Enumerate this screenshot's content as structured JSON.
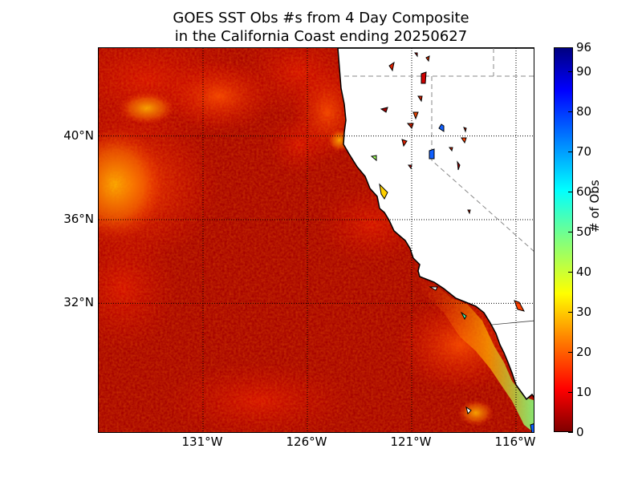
{
  "title": {
    "line1": "GOES SST Obs #s from 4 Day Composite",
    "line2": "in the California Coast ending 20250627"
  },
  "map": {
    "lat_labels": [
      {
        "value": 40,
        "text": "40°N"
      },
      {
        "value": 36,
        "text": "36°N"
      },
      {
        "value": 32,
        "text": "32°N"
      }
    ],
    "lon_labels": [
      {
        "value": -131,
        "text": "131°W"
      },
      {
        "value": -126,
        "text": "126°W"
      },
      {
        "value": -121,
        "text": "121°W"
      },
      {
        "value": -116,
        "text": "116°W"
      }
    ],
    "colors": {
      "ocean_base": "#a50000",
      "land": "#ffffff",
      "coastline": "#000000",
      "gridline": "#000000",
      "border": "#888888"
    }
  },
  "colorbar": {
    "label": "# of Obs",
    "min": 0,
    "max": 96,
    "ticks": [
      {
        "value": 0,
        "text": "0"
      },
      {
        "value": 10,
        "text": "10"
      },
      {
        "value": 20,
        "text": "20"
      },
      {
        "value": 30,
        "text": "30"
      },
      {
        "value": 40,
        "text": "40"
      },
      {
        "value": 50,
        "text": "50"
      },
      {
        "value": 60,
        "text": "60"
      },
      {
        "value": 70,
        "text": "70"
      },
      {
        "value": 80,
        "text": "80"
      },
      {
        "value": 90,
        "text": "90"
      },
      {
        "value": 96,
        "text": "96"
      }
    ],
    "colormap": "jet"
  }
}
